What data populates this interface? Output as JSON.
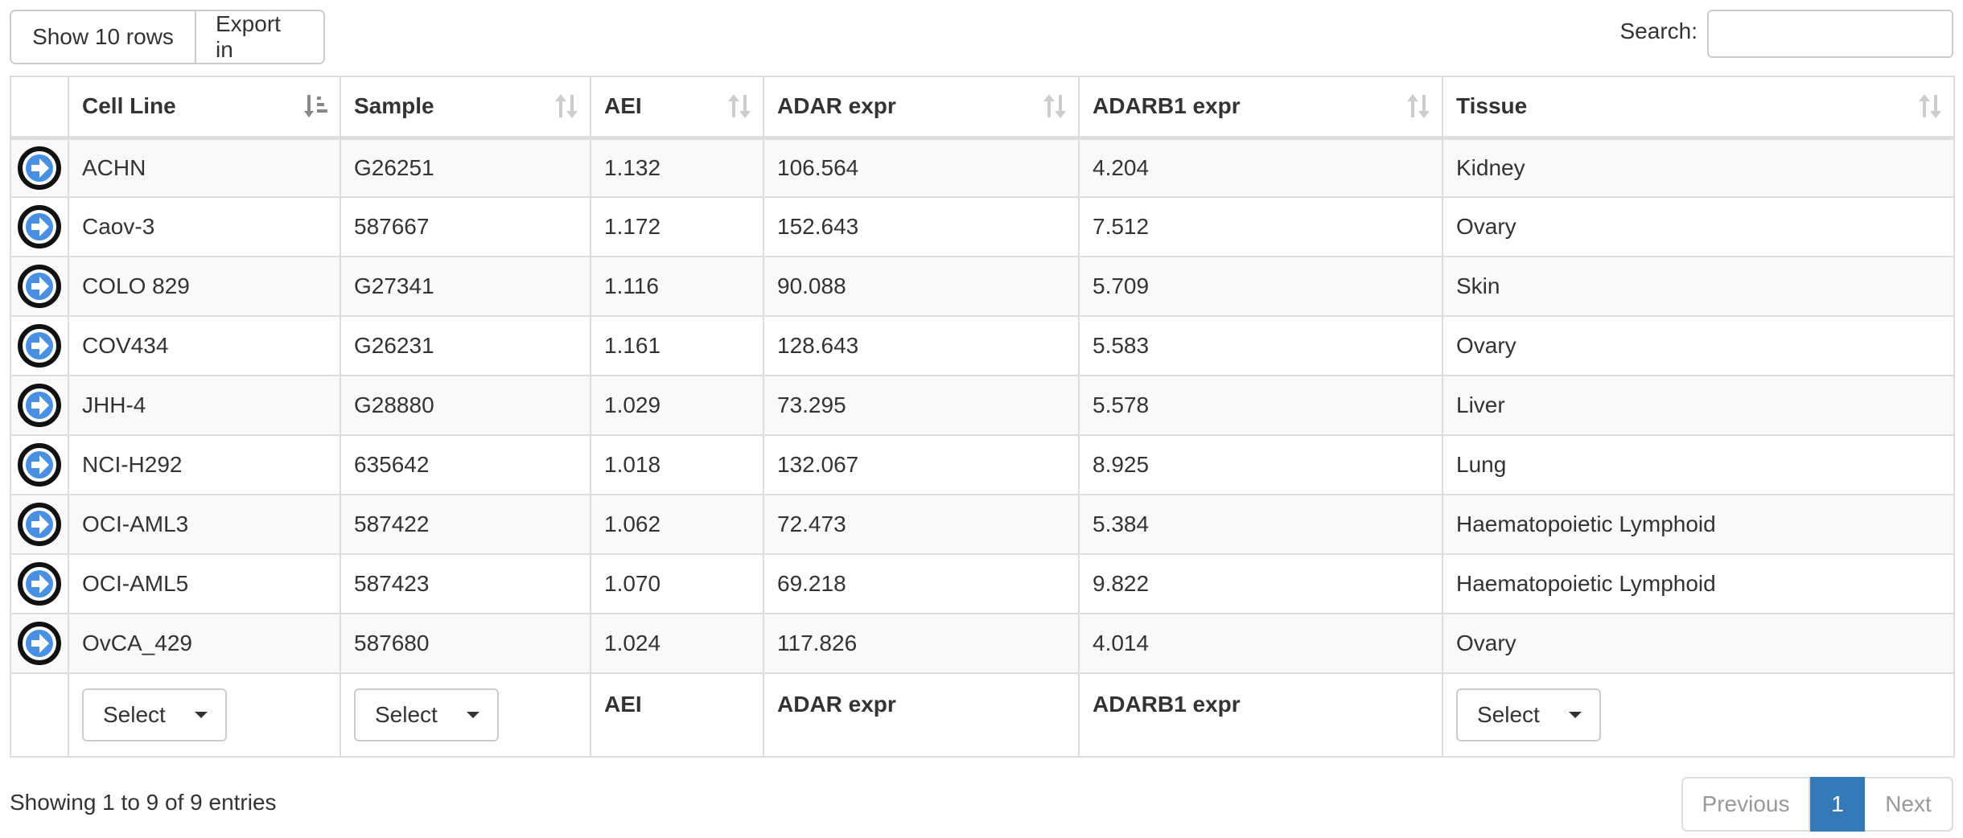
{
  "toolbar": {
    "show_rows_label": "Show 10 rows",
    "export_label": "Export in"
  },
  "search": {
    "label": "Search:",
    "value": "",
    "placeholder": ""
  },
  "table": {
    "headers": {
      "cell_line": "Cell Line",
      "sample": "Sample",
      "aei": "AEI",
      "adar_expr": "ADAR expr",
      "adarb1_expr": "ADARB1 expr",
      "tissue": "Tissue"
    },
    "rows": [
      {
        "cell_line": "ACHN",
        "sample": "G26251",
        "aei": "1.132",
        "adar_expr": "106.564",
        "adarb1_expr": "4.204",
        "tissue": "Kidney"
      },
      {
        "cell_line": "Caov-3",
        "sample": "587667",
        "aei": "1.172",
        "adar_expr": "152.643",
        "adarb1_expr": "7.512",
        "tissue": "Ovary"
      },
      {
        "cell_line": "COLO 829",
        "sample": "G27341",
        "aei": "1.116",
        "adar_expr": "90.088",
        "adarb1_expr": "5.709",
        "tissue": "Skin"
      },
      {
        "cell_line": "COV434",
        "sample": "G26231",
        "aei": "1.161",
        "adar_expr": "128.643",
        "adarb1_expr": "5.583",
        "tissue": "Ovary"
      },
      {
        "cell_line": "JHH-4",
        "sample": "G28880",
        "aei": "1.029",
        "adar_expr": "73.295",
        "adarb1_expr": "5.578",
        "tissue": "Liver"
      },
      {
        "cell_line": "NCI-H292",
        "sample": "635642",
        "aei": "1.018",
        "adar_expr": "132.067",
        "adarb1_expr": "8.925",
        "tissue": "Lung"
      },
      {
        "cell_line": "OCI-AML3",
        "sample": "587422",
        "aei": "1.062",
        "adar_expr": "72.473",
        "adarb1_expr": "5.384",
        "tissue": "Haematopoietic Lymphoid"
      },
      {
        "cell_line": "OCI-AML5",
        "sample": "587423",
        "aei": "1.070",
        "adar_expr": "69.218",
        "adarb1_expr": "9.822",
        "tissue": "Haematopoietic Lymphoid"
      },
      {
        "cell_line": "OvCA_429",
        "sample": "587680",
        "aei": "1.024",
        "adar_expr": "117.826",
        "adarb1_expr": "4.014",
        "tissue": "Ovary"
      }
    ],
    "footer": {
      "cell_line_select": "Select",
      "sample_select": "Select",
      "aei": "AEI",
      "adar_expr": "ADAR expr",
      "adarb1_expr": "ADARB1 expr",
      "tissue_select": "Select"
    },
    "sort": {
      "column": "cell_line",
      "direction": "asc"
    }
  },
  "info": {
    "text": "Showing 1 to 9 of 9 entries"
  },
  "pagination": {
    "previous": "Previous",
    "current_page": "1",
    "next": "Next"
  },
  "colors": {
    "accent": "#337ab7",
    "detail_icon_fill": "#4a90e2",
    "row_stripe": "#f9f9f9",
    "border": "#dddddd"
  }
}
